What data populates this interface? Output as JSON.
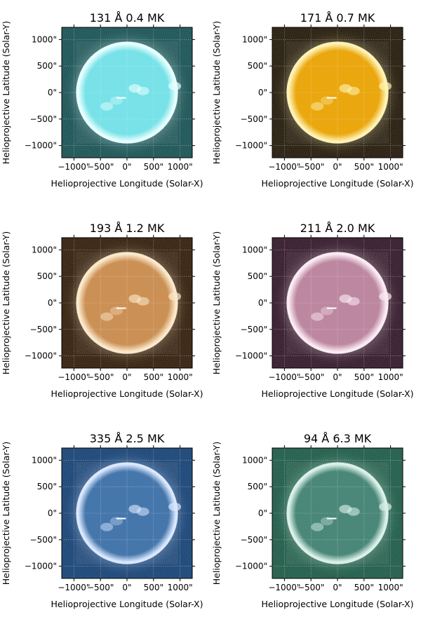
{
  "chart_data": {
    "type": "image",
    "panels": [
      {
        "title": "131 Å 0.4 MK",
        "colormap": "cyan",
        "colors": {
          "bg": "#0f4a4c",
          "disk": "#6fe0e6",
          "limb": "#e6ffff"
        },
        "xlabel": "Helioprojective Longitude (Solar-X)",
        "ylabel": "Helioprojective Latitude (Solar-Y)",
        "xlim": [
          -1230,
          1230
        ],
        "ylim": [
          -1230,
          1230
        ]
      },
      {
        "title": "171 Å 0.7 MK",
        "colormap": "gold",
        "colors": {
          "bg": "#1a1000",
          "disk": "#e9a200",
          "limb": "#fff2b0"
        },
        "xlabel": "Helioprojective Longitude (Solar-X)",
        "ylabel": "Helioprojective Latitude (Solar-Y)",
        "xlim": [
          -1230,
          1230
        ],
        "ylim": [
          -1230,
          1230
        ]
      },
      {
        "title": "193 Å 1.2 MK",
        "colormap": "bronze",
        "colors": {
          "bg": "#2a1400",
          "disk": "#c8894a",
          "limb": "#fbe7c8"
        },
        "xlabel": "Helioprojective Longitude (Solar-X)",
        "ylabel": "Helioprojective Latitude (Solar-Y)",
        "xlim": [
          -1230,
          1230
        ],
        "ylim": [
          -1230,
          1230
        ]
      },
      {
        "title": "211 Å 2.0 MK",
        "colormap": "magenta",
        "colors": {
          "bg": "#2a0e20",
          "disk": "#b8809a",
          "limb": "#fbeaf2"
        },
        "xlabel": "Helioprojective Longitude (Solar-X)",
        "ylabel": "Helioprojective Latitude (Solar-Y)",
        "xlim": [
          -1230,
          1230
        ],
        "ylim": [
          -1230,
          1230
        ]
      },
      {
        "title": "335 Å 2.5 MK",
        "colormap": "blue",
        "colors": {
          "bg": "#0d3a6e",
          "disk": "#3a6ea6",
          "limb": "#d8e6ff"
        },
        "xlabel": "Helioprojective Longitude (Solar-X)",
        "ylabel": "Helioprojective Latitude (Solar-Y)",
        "xlim": [
          -1230,
          1230
        ],
        "ylim": [
          -1230,
          1230
        ]
      },
      {
        "title": "94 Å 6.3 MK",
        "colormap": "teal",
        "colors": {
          "bg": "#14533f",
          "disk": "#3f8070",
          "limb": "#d8f0e8"
        },
        "xlabel": "Helioprojective Longitude (Solar-X)",
        "ylabel": "Helioprojective Latitude (Solar-Y)",
        "xlim": [
          -1230,
          1230
        ],
        "ylim": [
          -1230,
          1230
        ]
      }
    ],
    "xticks": [
      -1000,
      -500,
      0,
      500,
      1000
    ],
    "yticks": [
      1000,
      500,
      0,
      -500,
      -1000
    ],
    "xtick_labels": [
      "−1000\"",
      "−500\"",
      "0\"",
      "500\"",
      "1000\""
    ],
    "ytick_labels": [
      "1000\"",
      "500\"",
      "0\"",
      "−500\"",
      "−1000\""
    ],
    "solar_radius": 960,
    "grid": true,
    "marker_line": {
      "x": [
        -200,
        -20
      ],
      "y": -100,
      "color": "#ffffff"
    }
  }
}
